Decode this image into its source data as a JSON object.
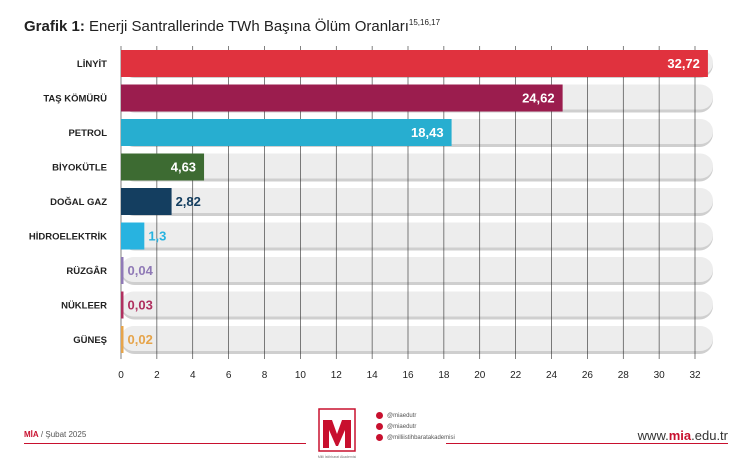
{
  "chart_data": {
    "type": "bar",
    "orientation": "horizontal",
    "title_lead": "Grafik 1:",
    "title_main": "Enerji Santrallerinde TWh Başına Ölüm Oranları",
    "title_refs": "15,16,17",
    "categories": [
      "LİNYİT",
      "TAŞ KÖMÜRÜ",
      "PETROL",
      "BİYOKÜTLE",
      "DOĞAL GAZ",
      "HİDROELEKTRİK",
      "RÜZGÂR",
      "NÜKLEER",
      "GÜNEŞ"
    ],
    "values": [
      32.72,
      24.62,
      18.43,
      4.63,
      2.82,
      1.3,
      0.04,
      0.03,
      0.02
    ],
    "value_labels": [
      "32,72",
      "24,62",
      "18,43",
      "4,63",
      "2,82",
      "1,3",
      "0,04",
      "0,03",
      "0,02"
    ],
    "colors": [
      "#e0323e",
      "#9b1d4e",
      "#27aed0",
      "#3d6b32",
      "#143e60",
      "#28b3e0",
      "#8f79b6",
      "#b0305f",
      "#e6a44a"
    ],
    "xlim": [
      0,
      32
    ],
    "xticks": [
      "0",
      "2",
      "4",
      "6",
      "8",
      "10",
      "12",
      "14",
      "16",
      "18",
      "20",
      "22",
      "24",
      "26",
      "28",
      "30",
      "32"
    ],
    "xtick_values": [
      0,
      2,
      4,
      6,
      8,
      10,
      12,
      14,
      16,
      18,
      20,
      22,
      24,
      26,
      28,
      30,
      32
    ],
    "grid": true,
    "legend": "none"
  },
  "footer": {
    "brand": "MİA",
    "date": "/ Şubat 2025",
    "logo_caption": "Milli İstihbarat Akademisi",
    "socials": [
      "@miaedutr",
      "@miaedutr",
      "@milliistihbaratakademisi"
    ],
    "site_prefix": "www.",
    "site_brand": "mia",
    "site_suffix": ".edu.tr"
  },
  "colors": {
    "accent": "#c8102e",
    "track": "#dcdcdc"
  }
}
